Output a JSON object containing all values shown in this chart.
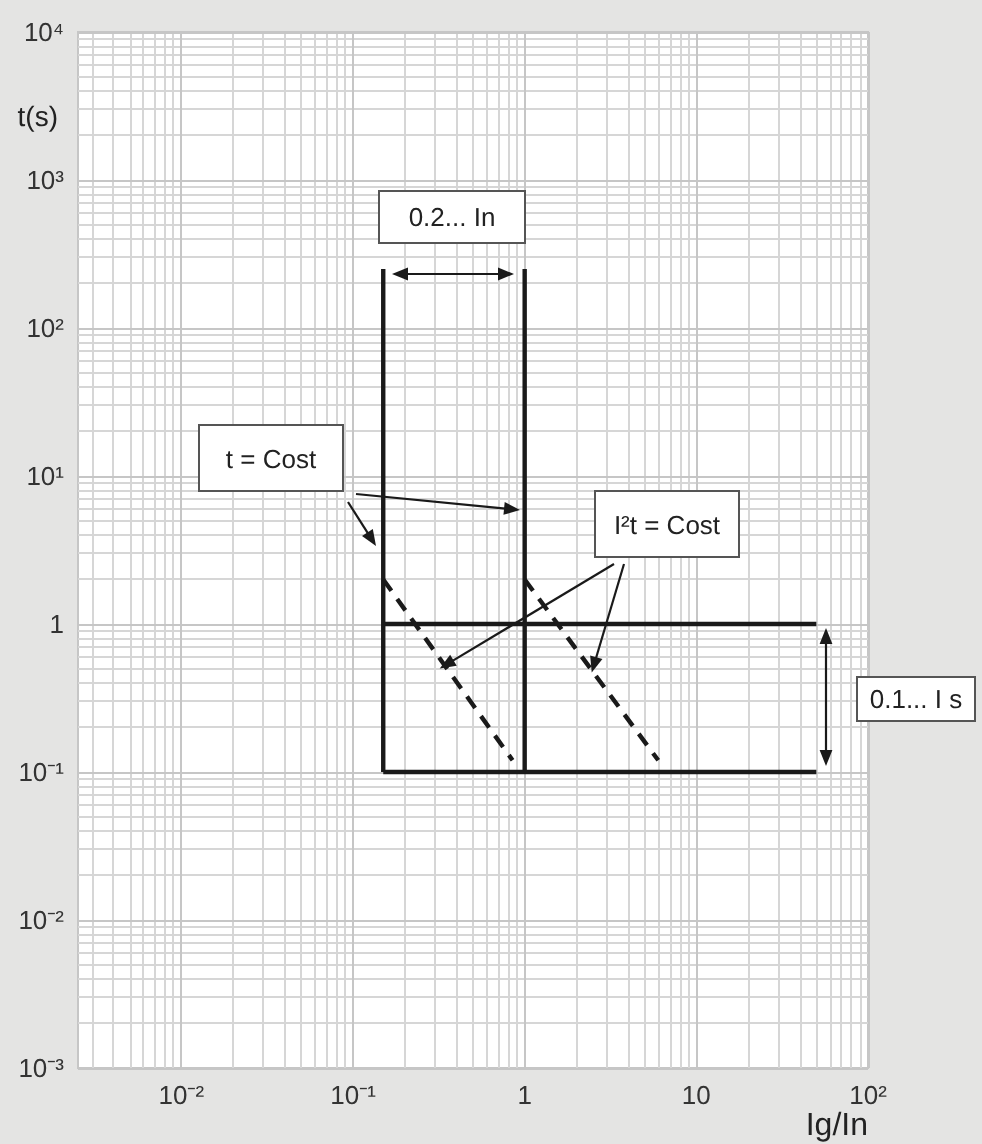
{
  "chart_data": {
    "type": "line",
    "xlabel": "Ig/In",
    "ylabel": "t(s)",
    "log": "xy",
    "grid": true,
    "marker": "none",
    "xlim": [
      0.0025,
      100
    ],
    "xticks": [
      {
        "value": 0.01,
        "label": "10⁻²"
      },
      {
        "value": 0.1,
        "label": "10⁻¹"
      },
      1,
      10,
      {
        "value": 100,
        "label": "10²"
      }
    ],
    "ylim": [
      0.001,
      10000
    ],
    "yticks": [
      {
        "value": 0.001,
        "label": "10⁻³"
      },
      {
        "value": 0.01,
        "label": "10⁻²"
      },
      {
        "value": 0.1,
        "label": "10⁻¹"
      },
      1,
      {
        "value": 10,
        "label": "10¹"
      },
      {
        "value": 100,
        "label": "10²"
      },
      {
        "value": 1000,
        "label": "10³"
      },
      {
        "value": 10000,
        "label": "10⁴"
      }
    ],
    "series": [
      {
        "x": [
          0.15,
          0.15
        ],
        "values": [
          250,
          0.1
        ],
        "color": "#1a1a1a",
        "line_style": "solid"
      },
      {
        "x": [
          1,
          1
        ],
        "values": [
          250,
          0.1
        ],
        "color": "#1a1a1a",
        "line_style": "solid"
      },
      {
        "x": [
          0.15,
          50
        ],
        "values": [
          1,
          1
        ],
        "color": "#1a1a1a",
        "line_style": "solid"
      },
      {
        "x": [
          0.15,
          50
        ],
        "values": [
          0.1,
          0.1
        ],
        "color": "#1a1a1a",
        "line_style": "solid"
      },
      {
        "x": [
          0.15,
          0.85
        ],
        "values": [
          2,
          0.12
        ],
        "color": "#1a1a1a",
        "line_style": "dashed"
      },
      {
        "x": [
          1,
          6
        ],
        "values": [
          2,
          0.12
        ],
        "color": "#1a1a1a",
        "line_style": "dashed"
      }
    ],
    "annotations": [
      "0.2... In",
      "t = Cost",
      {
        "text": "I²t = Cost",
        "x": 0.32,
        "y": 0.5
      },
      "0.1... I s"
    ]
  }
}
